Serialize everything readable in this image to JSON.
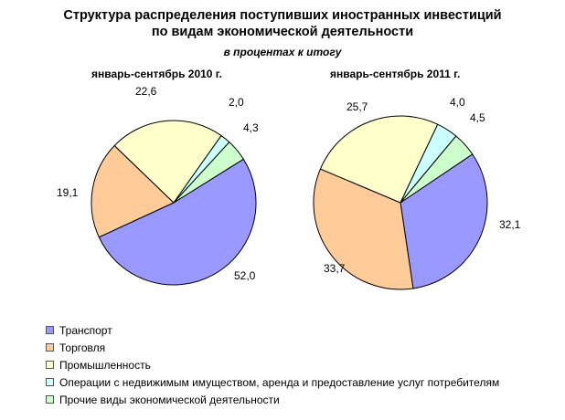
{
  "title_line1": "Структура распределения поступивших иностранных инвестиций",
  "title_line2": "по видам экономической деятельности",
  "units": "в процентах к итогу",
  "chart_data": [
    {
      "type": "pie",
      "title": "январь-сентябрь  2010 г.",
      "categories": [
        "Транспорт",
        "Торговля",
        "Промышленность",
        "Операции с недвижимым имуществом, аренда и предоставление услуг потребителям",
        "Прочие виды экономической деятельности"
      ],
      "values": [
        52.0,
        19.1,
        22.6,
        2.0,
        4.3
      ],
      "labels": [
        "52,0",
        "19,1",
        "22,6",
        "2,0",
        "4,3"
      ]
    },
    {
      "type": "pie",
      "title": "январь-сентябрь  2011 г.",
      "categories": [
        "Транспорт",
        "Торговля",
        "Промышленность",
        "Операции с недвижимым имуществом, аренда и предоставление услуг потребителям",
        "Прочие виды экономической деятельности"
      ],
      "values": [
        32.1,
        33.7,
        25.7,
        4.0,
        4.5
      ],
      "labels": [
        "32,1",
        "33,7",
        "25,7",
        "4,0",
        "4,5"
      ]
    }
  ],
  "colors": [
    "#9999ff",
    "#ffcc99",
    "#ffffcc",
    "#ccffff",
    "#ccffcc"
  ],
  "legend": [
    {
      "label": "Транспорт",
      "color": "#9999ff"
    },
    {
      "label": "Торговля",
      "color": "#ffcc99"
    },
    {
      "label": "Промышленность",
      "color": "#ffffcc"
    },
    {
      "label": "Операции с недвижимым имуществом, аренда и предоставление услуг потребителям",
      "color": "#ccffff"
    },
    {
      "label": "Прочие виды экономической деятельности",
      "color": "#ccffcc"
    }
  ]
}
